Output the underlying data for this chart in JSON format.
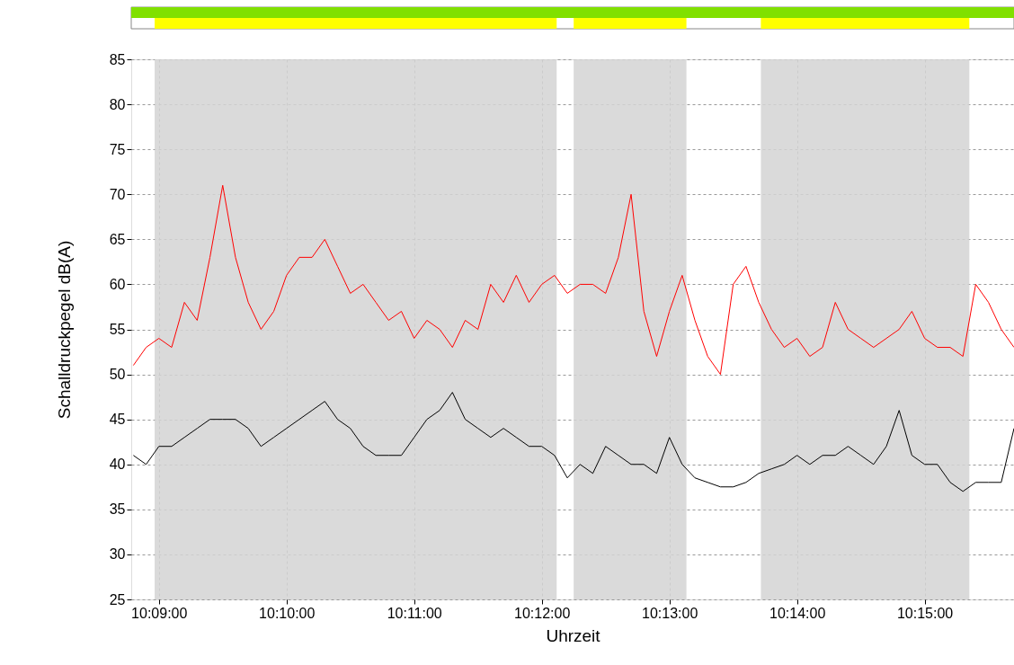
{
  "chart_data": {
    "type": "line",
    "xlabel": "Uhrzeit",
    "ylabel": "Schalldruckpegel dB(A)",
    "x": [
      10.146667,
      10.148333,
      10.15,
      10.151667,
      10.153333,
      10.155,
      10.156667,
      10.158333,
      10.16,
      10.161667,
      10.163333,
      10.165,
      10.166667,
      10.168333,
      10.17,
      10.171667,
      10.173333,
      10.175,
      10.176667,
      10.178333,
      10.18,
      10.181667,
      10.183333,
      10.185,
      10.186667,
      10.188333,
      10.19,
      10.191667,
      10.193333,
      10.195,
      10.196667,
      10.198333,
      10.2,
      10.201667,
      10.203333,
      10.205,
      10.206667,
      10.208333,
      10.21,
      10.211667,
      10.213333,
      10.215,
      10.216667,
      10.218333,
      10.22,
      10.221667,
      10.223333,
      10.225,
      10.226667,
      10.228333,
      10.23,
      10.231667,
      10.233333,
      10.235,
      10.236667,
      10.238333,
      10.24,
      10.241667,
      10.243333,
      10.245,
      10.246667,
      10.248333,
      10.25,
      10.251667,
      10.253333,
      10.255,
      10.256667,
      10.258333,
      10.26,
      10.261667
    ],
    "series": [
      {
        "color": "#ff0000",
        "values": [
          51,
          53,
          54,
          53,
          58,
          56,
          63,
          71,
          63,
          58,
          55,
          57,
          61,
          63,
          63,
          65,
          62,
          59,
          60,
          58,
          56,
          57,
          54,
          56,
          55,
          53,
          56,
          55,
          60,
          58,
          61,
          58,
          60,
          61,
          59,
          60,
          60,
          59,
          63,
          70,
          57,
          52,
          57,
          61,
          56,
          52,
          50,
          60,
          62,
          58,
          55,
          53,
          54,
          52,
          53,
          58,
          55,
          54,
          53,
          54,
          55,
          57,
          54,
          53,
          53,
          52,
          60,
          58,
          55,
          53
        ]
      },
      {
        "color": "#000000",
        "values": [
          41,
          40,
          42,
          42,
          43,
          44,
          45,
          45,
          45,
          44,
          42,
          43,
          44,
          45,
          46,
          47,
          45,
          44,
          42,
          41,
          41,
          41,
          43,
          45,
          46,
          48,
          45,
          44,
          43,
          44,
          43,
          42,
          42,
          41,
          38.5,
          40,
          39,
          42,
          41,
          40,
          40,
          39,
          43,
          40,
          38.5,
          38,
          37.5,
          37.5,
          38,
          39,
          39.5,
          40,
          41,
          40,
          41,
          41,
          42,
          41,
          40,
          42,
          46,
          41,
          40,
          40,
          38,
          37,
          38,
          38,
          38,
          44
        ]
      }
    ],
    "xlim": [
      10.146389,
      10.261667
    ],
    "xticks": [
      {
        "value": 10.15,
        "label": "10:09:00"
      },
      {
        "value": 10.166667,
        "label": "10:10:00"
      },
      {
        "value": 10.183333,
        "label": "10:11:00"
      },
      {
        "value": 10.2,
        "label": "10:12:00"
      },
      {
        "value": 10.216667,
        "label": "10:13:00"
      },
      {
        "value": 10.233333,
        "label": "10:14:00"
      },
      {
        "value": 10.25,
        "label": "10:15:00"
      }
    ],
    "ylim": [
      25,
      85
    ],
    "yticks": [
      25,
      30,
      35,
      40,
      45,
      50,
      55,
      60,
      65,
      70,
      75,
      80,
      85
    ],
    "bands": [
      {
        "axis": "x",
        "from": 10.149444,
        "to": 10.201944,
        "color": "#d4d4d4"
      },
      {
        "axis": "x",
        "from": 10.204167,
        "to": 10.218889,
        "color": "#d4d4d4"
      },
      {
        "axis": "x",
        "from": 10.228611,
        "to": 10.255833,
        "color": "#d4d4d4"
      }
    ],
    "grid": true,
    "line_style": "solid",
    "marker": "none"
  }
}
